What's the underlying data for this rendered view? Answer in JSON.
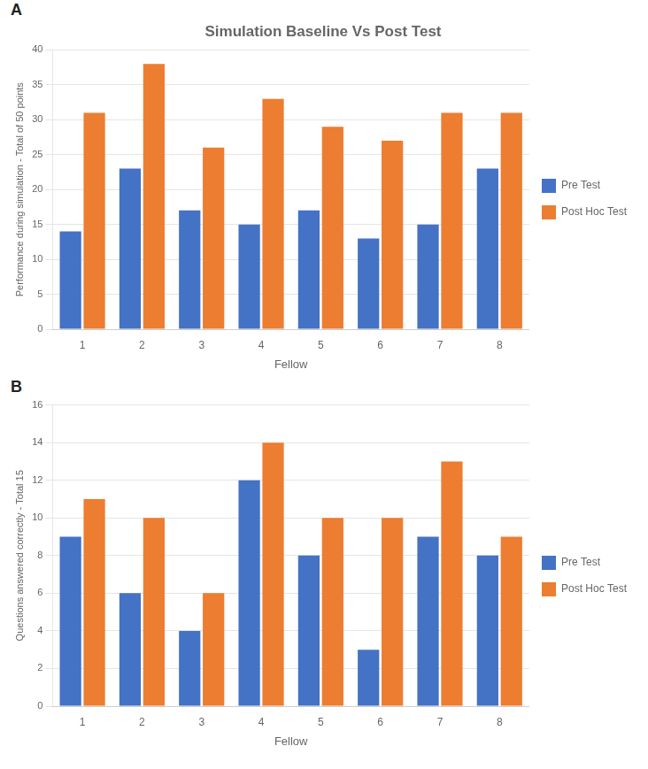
{
  "chart_data": [
    {
      "type": "bar",
      "title": "Simulation Baseline Vs Post Test",
      "annotations": [
        "A"
      ],
      "categories": [
        "1",
        "2",
        "3",
        "4",
        "5",
        "6",
        "7",
        "8"
      ],
      "series": [
        {
          "name": "Pre Test",
          "color": "#4472C4",
          "values": [
            14,
            23,
            17,
            15,
            17,
            13,
            15,
            23
          ]
        },
        {
          "name": "Post Hoc Test",
          "color": "#ED7D31",
          "values": [
            31,
            38,
            26,
            33,
            29,
            27,
            31,
            31
          ]
        }
      ],
      "xlabel": "Fellow",
      "ylabel": "Performance during simulation - Total of 50 points",
      "ylim": [
        0,
        40
      ],
      "yticks": [
        0,
        5,
        10,
        15,
        20,
        25,
        30,
        35,
        40
      ],
      "grid": true,
      "legend": "right"
    },
    {
      "type": "bar",
      "annotations": [
        "B"
      ],
      "categories": [
        "1",
        "2",
        "3",
        "4",
        "5",
        "6",
        "7",
        "8"
      ],
      "series": [
        {
          "name": "Pre Test",
          "color": "#4472C4",
          "values": [
            9,
            6,
            4,
            12,
            8,
            3,
            9,
            8
          ]
        },
        {
          "name": "Post Hoc Test",
          "color": "#ED7D31",
          "values": [
            11,
            10,
            6,
            14,
            10,
            10,
            13,
            9
          ]
        }
      ],
      "xlabel": "Fellow",
      "ylabel": "Questions answered correctly - Total 15",
      "ylim": [
        0,
        16
      ],
      "yticks": [
        0,
        2,
        4,
        6,
        8,
        10,
        12,
        14,
        16
      ],
      "grid": true,
      "legend": "right"
    }
  ]
}
